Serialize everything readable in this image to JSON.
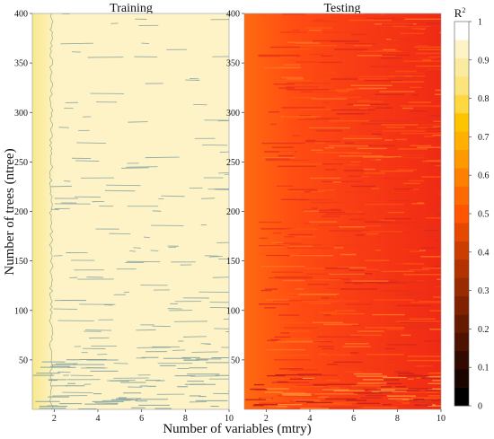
{
  "figure": {
    "ylabel": "Number of trees (ntree)",
    "xlabel": "Number of variables (mtry)",
    "colorbar_title": "R",
    "colorbar_title_sup": "2"
  },
  "chart_data": [
    {
      "type": "heatmap",
      "title": "Training",
      "xlim": [
        1,
        10
      ],
      "ylim": [
        0,
        400
      ],
      "xticks": [
        2,
        4,
        6,
        8,
        10
      ],
      "yticks": [
        50,
        100,
        150,
        200,
        250,
        300,
        350,
        400
      ],
      "value_description": "R² mostly 0.9–1.0; slightly lower (~0.88–0.9) at mtry≈1–1.5",
      "typical_value": 0.95,
      "min_value_left_edge": 0.88
    },
    {
      "type": "heatmap",
      "title": "Testing",
      "xlim": [
        1,
        10
      ],
      "ylim": [
        0,
        400
      ],
      "xticks": [
        2,
        4,
        6,
        8,
        10
      ],
      "yticks": [
        50,
        100,
        150,
        200,
        250,
        300,
        350,
        400
      ],
      "value_description": "R² ~0.55 at mtry=1 decreasing to ~0.45 at mtry≈10",
      "value_at_mtry_1": 0.55,
      "value_at_mtry_10": 0.45
    }
  ],
  "colorbar": {
    "range": [
      0,
      1
    ],
    "tick_labels": [
      "0",
      "0.1",
      "0.2",
      "0.3",
      "0.4",
      "0.5",
      "0.6",
      "0.7",
      "0.8",
      "0.9",
      "1"
    ],
    "colors": [
      "#000000",
      "#1a0500",
      "#330a00",
      "#4d1200",
      "#661a00",
      "#802200",
      "#992b00",
      "#b33300",
      "#cc3d00",
      "#e64800",
      "#ff5500",
      "#ff6a00",
      "#ff8000",
      "#ff9900",
      "#ffb000",
      "#ffc400",
      "#ffd740",
      "#fde47a",
      "#fbeb9e",
      "#fdf3c6",
      "#ffffff"
    ]
  }
}
